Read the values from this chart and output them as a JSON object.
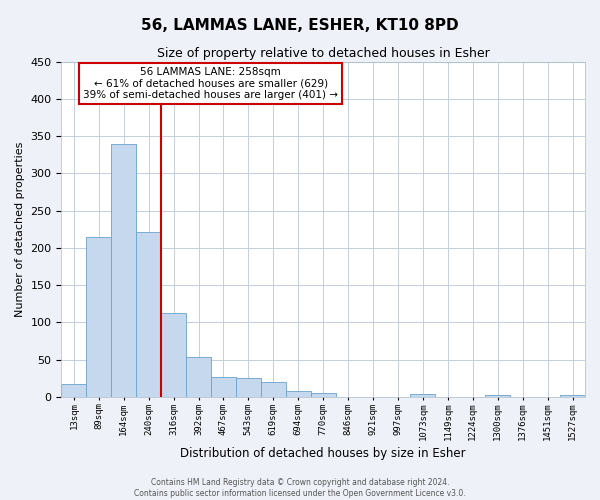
{
  "title": "56, LAMMAS LANE, ESHER, KT10 8PD",
  "subtitle": "Size of property relative to detached houses in Esher",
  "xlabel": "Distribution of detached houses by size in Esher",
  "ylabel": "Number of detached properties",
  "bin_labels": [
    "13sqm",
    "89sqm",
    "164sqm",
    "240sqm",
    "316sqm",
    "392sqm",
    "467sqm",
    "543sqm",
    "619sqm",
    "694sqm",
    "770sqm",
    "846sqm",
    "921sqm",
    "997sqm",
    "1073sqm",
    "1149sqm",
    "1224sqm",
    "1300sqm",
    "1376sqm",
    "1451sqm",
    "1527sqm"
  ],
  "bar_values": [
    17,
    215,
    340,
    222,
    113,
    53,
    27,
    26,
    20,
    8,
    5,
    0,
    0,
    0,
    4,
    0,
    0,
    3,
    0,
    0,
    3
  ],
  "bar_color": "#c5d8ed",
  "bar_edgecolor": "#6aa3cc",
  "vline_x_idx": 3,
  "vline_color": "#cc0000",
  "ylim": [
    0,
    450
  ],
  "yticks": [
    0,
    50,
    100,
    150,
    200,
    250,
    300,
    350,
    400,
    450
  ],
  "annotation_title": "56 LAMMAS LANE: 258sqm",
  "annotation_line1": "← 61% of detached houses are smaller (629)",
  "annotation_line2": "39% of semi-detached houses are larger (401) →",
  "annotation_box_color": "#cc0000",
  "footer1": "Contains HM Land Registry data © Crown copyright and database right 2024.",
  "footer2": "Contains public sector information licensed under the Open Government Licence v3.0.",
  "bg_color": "#eef2f8",
  "plot_bg_color": "#ffffff",
  "grid_color": "#c5cedc"
}
